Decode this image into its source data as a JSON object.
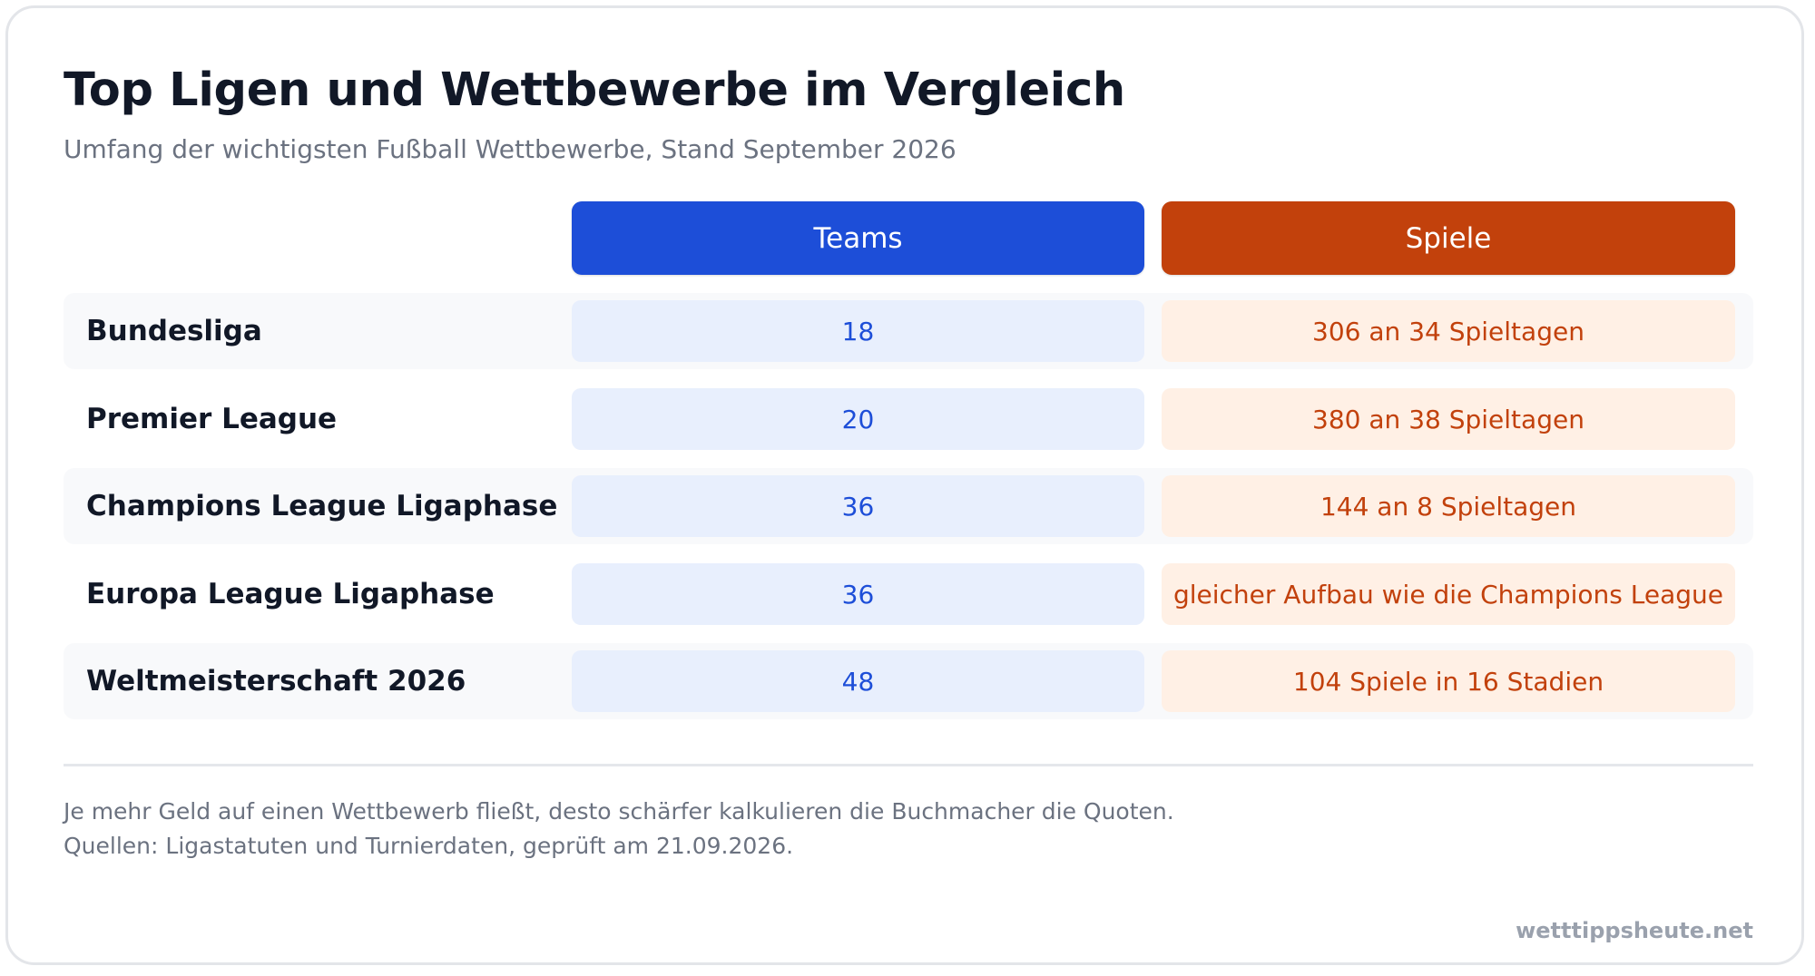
{
  "chart_data": {
    "type": "table",
    "title": "Top Ligen und Wettbewerbe im Vergleich",
    "subtitle": "Umfang der wichtigsten Fußball Wettbewerbe, Stand September 2026",
    "columns": [
      "Teams",
      "Spiele"
    ],
    "rows": [
      {
        "label": "Bundesliga",
        "teams": "18",
        "spiele": "306 an 34 Spieltagen"
      },
      {
        "label": "Premier League",
        "teams": "20",
        "spiele": "380 an 38 Spieltagen"
      },
      {
        "label": "Champions League Ligaphase",
        "teams": "36",
        "spiele": "144 an 8 Spieltagen"
      },
      {
        "label": "Europa League Ligaphase",
        "teams": "36",
        "spiele": "gleicher Aufbau wie die Champions League"
      },
      {
        "label": "Weltmeisterschaft 2026",
        "teams": "48",
        "spiele": "104 Spiele in 16 Stadien"
      }
    ]
  },
  "notes": [
    "Je mehr Geld auf einen Wettbewerb fließt, desto schärfer kalkulieren die Buchmacher die Quoten.",
    "Quellen: Ligastatuten und Turnierdaten, geprüft am 21.09.2026."
  ],
  "brand": "wetttippsheute.net",
  "colors": {
    "teams_header": "#1d4ed8",
    "spiele_header": "#c2410c",
    "teams_cell_bg": "#e8effd",
    "teams_cell_text": "#1d4ed8",
    "spiele_cell_bg": "#fff0e5",
    "spiele_cell_text": "#c2410c",
    "row_stripe": "#f8f9fb"
  }
}
